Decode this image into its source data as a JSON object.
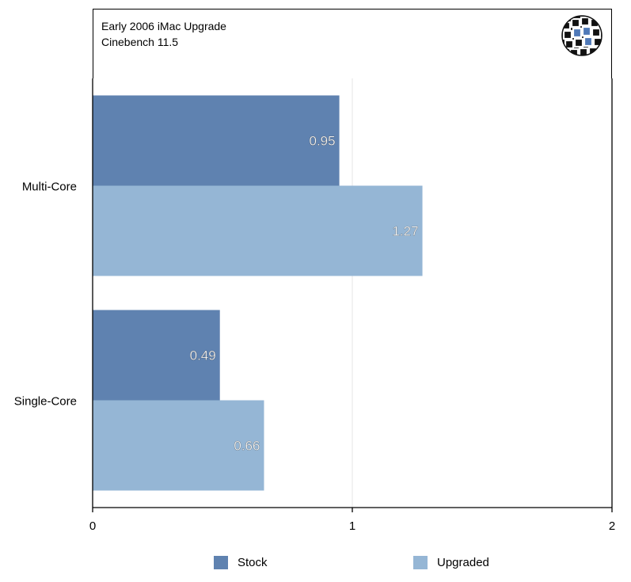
{
  "header": {
    "title": "Early 2006 iMac Upgrade",
    "subtitle": "Cinebench 11.5",
    "logo_icon": "globe-logo-icon"
  },
  "colors": {
    "stock": "#5f82b0",
    "upgraded": "#95b6d5",
    "axis": "#000000",
    "grid": "#e6e6e6",
    "label": "#ffffff"
  },
  "chart_data": {
    "type": "bar",
    "orientation": "horizontal",
    "title": "Early 2006 iMac Upgrade",
    "subtitle": "Cinebench 11.5",
    "categories": [
      "Multi-Core",
      "Single-Core"
    ],
    "series": [
      {
        "name": "Stock",
        "values": [
          0.95,
          0.49
        ],
        "labels": [
          "0.95",
          "0.49"
        ]
      },
      {
        "name": "Upgraded",
        "values": [
          1.27,
          0.66
        ],
        "labels": [
          "1.27",
          "0.66"
        ]
      }
    ],
    "xlim": [
      0,
      2
    ],
    "xticks": [
      "0",
      "1",
      "2"
    ],
    "xlabel": "",
    "ylabel": "",
    "grid": true,
    "legend": "bottom"
  }
}
